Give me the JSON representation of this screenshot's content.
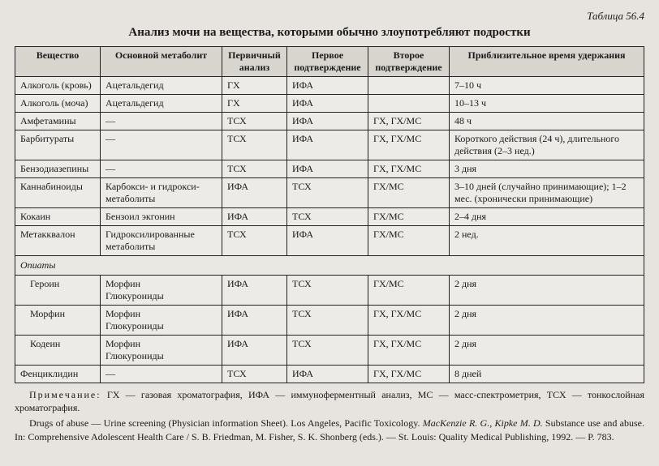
{
  "table_number": "Таблица 56.4",
  "title": "Анализ мочи на вещества, которыми обычно злоупотребляют подростки",
  "columns": [
    "Вещество",
    "Основной метаболит",
    "Первичный анализ",
    "Первое подтверждение",
    "Второе подтверждение",
    "Приблизительное время удержания"
  ],
  "rows": [
    {
      "c1": "Алкоголь (кровь)",
      "c2": "Ацетальдегид",
      "c3": "ГХ",
      "c4": "ИФА",
      "c5": "",
      "c6": "7–10 ч"
    },
    {
      "c1": "Алкоголь (моча)",
      "c2": "Ацетальдегид",
      "c3": "ГХ",
      "c4": "ИФА",
      "c5": "",
      "c6": "10–13 ч"
    },
    {
      "c1": "Амфетамины",
      "c2": "—",
      "c3": "ТСХ",
      "c4": "ИФА",
      "c5": "ГХ, ГХ/МС",
      "c6": "48 ч"
    },
    {
      "c1": "Барбитураты",
      "c2": "—",
      "c3": "ТСХ",
      "c4": "ИФА",
      "c5": "ГХ, ГХ/МС",
      "c6": "Короткого действия (24 ч), дли­тельного действия (2–3 нед.)"
    },
    {
      "c1": "Бензодиазепины",
      "c2": "—",
      "c3": "ТСХ",
      "c4": "ИФА",
      "c5": "ГХ, ГХ/МС",
      "c6": "3 дня"
    },
    {
      "c1": "Каннабиноиды",
      "c2": "Карбокси- и гидрокси­метаболиты",
      "c3": "ИФА",
      "c4": "ТСХ",
      "c5": "ГХ/МС",
      "c6": "3–10 дней (случайно принимаю­щие); 1–2 мес. (хронически при­нимающие)"
    },
    {
      "c1": "Кокаин",
      "c2": "Бензоил экгонин",
      "c3": "ИФА",
      "c4": "ТСХ",
      "c5": "ГХ/МС",
      "c6": "2–4 дня"
    },
    {
      "c1": "Метакквалон",
      "c2": "Гидроксилированные метаболиты",
      "c3": "ТСХ",
      "c4": "ИФА",
      "c5": "ГХ/МС",
      "c6": "2 нед."
    }
  ],
  "section_label": "Опиаты",
  "opiates": [
    {
      "c1": "Героин",
      "c2a": "Морфин",
      "c2b": "Глюкурониды",
      "c3": "ИФА",
      "c4": "ТСХ",
      "c5": "ГХ/МС",
      "c6": "2 дня"
    },
    {
      "c1": "Морфин",
      "c2a": "Морфин",
      "c2b": "Глюкурониды",
      "c3": "ИФА",
      "c4": "ТСХ",
      "c5": "ГХ, ГХ/МС",
      "c6": "2 дня"
    },
    {
      "c1": "Кодеин",
      "c2a": "Морфин",
      "c2b": "Глюкурониды",
      "c3": "ИФА",
      "c4": "ТСХ",
      "c5": "ГХ, ГХ/МС",
      "c6": "2 дня"
    }
  ],
  "last_row": {
    "c1": "Фенциклидин",
    "c2": "—",
    "c3": "ТСХ",
    "c4": "ИФА",
    "c5": "ГХ, ГХ/МС",
    "c6": "8 дней"
  },
  "notes": {
    "note_label": "Примечание:",
    "note_body": " ГХ — газовая хроматография, ИФА — иммуноферментный анализ, МС — масс-спектрометрия, ТСХ — тон­кослойная хроматография.",
    "ref1": "Drugs of abuse — Urine screening (Physician information Sheet). Los Angeles, Pacific Toxicology. ",
    "ref1_ital": "MacKenzie R. G., Kipke M. D.",
    "ref2": " Sub­stance use and abuse. In: Comprehensive Adolescent Health Care / S. B. Friedman, M. Fisher, S. K. Shonberg (eds.). — St. Louis: Quality Medical Publishing, 1992. — P. 783."
  }
}
